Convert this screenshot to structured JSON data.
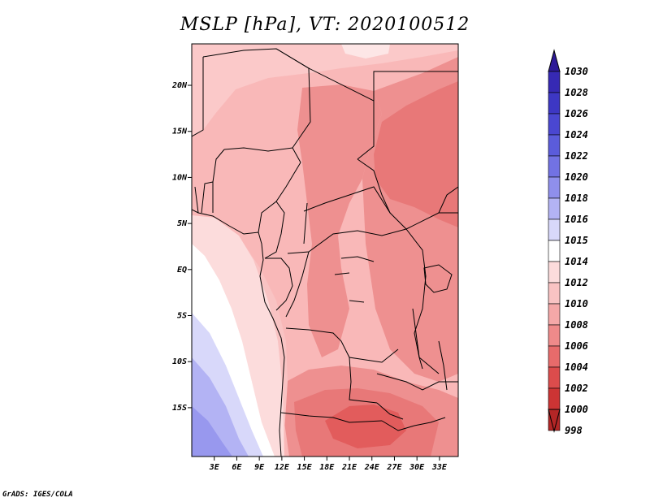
{
  "title": "MSLP [hPa], VT: 2020100512",
  "credit": "GrADS: IGES/COLA",
  "map": {
    "variable": "MSLP",
    "units": "hPa",
    "valid_time": "2020100512",
    "lat_labels": [
      "20N",
      "15N",
      "10N",
      "5N",
      "EQ",
      "5S",
      "10S",
      "15S"
    ],
    "lat_values": [
      20,
      15,
      10,
      5,
      0,
      -5,
      -10,
      -15
    ],
    "lon_labels": [
      "3E",
      "6E",
      "9E",
      "12E",
      "15E",
      "18E",
      "21E",
      "24E",
      "27E",
      "30E",
      "33E"
    ],
    "lon_values": [
      3,
      6,
      9,
      12,
      15,
      18,
      21,
      24,
      27,
      30,
      33
    ]
  },
  "colorbar": {
    "levels": [
      "1030",
      "1028",
      "1026",
      "1024",
      "1022",
      "1020",
      "1018",
      "1016",
      "1015",
      "1014",
      "1012",
      "1010",
      "1008",
      "1006",
      "1004",
      "1002",
      "1000",
      "998"
    ],
    "colors": [
      "#2e1a98",
      "#3629b4",
      "#3d37c4",
      "#4a47d1",
      "#5b5cdb",
      "#7272e3",
      "#8f8fec",
      "#b3b3f4",
      "#d8d8fa",
      "#ffffff",
      "#fcdcdc",
      "#f9c3c3",
      "#f5a8a8",
      "#ef8a8a",
      "#e76b6b",
      "#dc4c4c",
      "#cc3434",
      "#b32626"
    ]
  }
}
